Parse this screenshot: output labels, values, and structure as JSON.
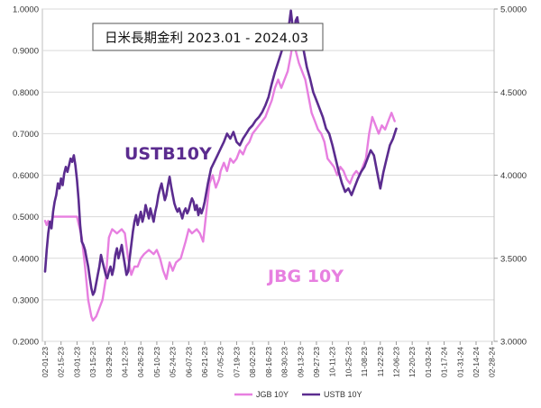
{
  "chart_data": {
    "type": "line",
    "title": "日米長期金利 2023.01 - 2024.03",
    "left_axis": {
      "ylim": [
        0.2,
        1.0
      ],
      "ticks": [
        "1.0000",
        "0.9000",
        "0.8000",
        "0.7000",
        "0.6000",
        "0.5000",
        "0.4000",
        "0.3000",
        "0.2000"
      ]
    },
    "right_axis": {
      "ylim": [
        3.0,
        5.0
      ],
      "ticks": [
        "5.0000",
        "4.5000",
        "4.0000",
        "3.5000",
        "3.0000"
      ]
    },
    "x_ticks": [
      "02-01-23",
      "02-15-23",
      "03-01-23",
      "03-15-23",
      "03-29-23",
      "04-12-23",
      "04-26-23",
      "05-10-23",
      "05-24-23",
      "06-07-23",
      "06-21-23",
      "07-05-23",
      "07-19-23",
      "08-02-23",
      "08-16-23",
      "08-30-23",
      "09-13-23",
      "09-27-23",
      "10-11-23",
      "10-25-23",
      "11-08-23",
      "11-22-23",
      "12-06-23",
      "12-20-23",
      "01-03-24",
      "01-17-24",
      "01-31-24",
      "02-14-24",
      "02-28-24"
    ],
    "grid": true,
    "legend_position": "bottom",
    "series": [
      {
        "name": "JGB 10Y",
        "axis": "left",
        "color": "#E77FE0",
        "values": [
          [
            0,
            0.49
          ],
          [
            0.1,
            0.48
          ],
          [
            0.2,
            0.49
          ],
          [
            0.3,
            0.48
          ],
          [
            0.5,
            0.5
          ],
          [
            1,
            0.5
          ],
          [
            1.5,
            0.5
          ],
          [
            2,
            0.5
          ],
          [
            2.3,
            0.45
          ],
          [
            2.5,
            0.38
          ],
          [
            2.7,
            0.3
          ],
          [
            2.9,
            0.26
          ],
          [
            3.0,
            0.25
          ],
          [
            3.2,
            0.26
          ],
          [
            3.4,
            0.28
          ],
          [
            3.6,
            0.3
          ],
          [
            3.8,
            0.35
          ],
          [
            4.0,
            0.45
          ],
          [
            4.2,
            0.47
          ],
          [
            4.5,
            0.46
          ],
          [
            4.8,
            0.47
          ],
          [
            5.0,
            0.46
          ],
          [
            5.2,
            0.4
          ],
          [
            5.4,
            0.36
          ],
          [
            5.6,
            0.38
          ],
          [
            5.8,
            0.38
          ],
          [
            6.0,
            0.4
          ],
          [
            6.2,
            0.41
          ],
          [
            6.5,
            0.42
          ],
          [
            6.8,
            0.41
          ],
          [
            7.0,
            0.42
          ],
          [
            7.2,
            0.4
          ],
          [
            7.4,
            0.37
          ],
          [
            7.6,
            0.35
          ],
          [
            7.8,
            0.39
          ],
          [
            8.0,
            0.37
          ],
          [
            8.2,
            0.39
          ],
          [
            8.5,
            0.4
          ],
          [
            8.8,
            0.44
          ],
          [
            9.0,
            0.47
          ],
          [
            9.2,
            0.46
          ],
          [
            9.5,
            0.47
          ],
          [
            9.7,
            0.46
          ],
          [
            9.9,
            0.44
          ],
          [
            10.1,
            0.51
          ],
          [
            10.3,
            0.58
          ],
          [
            10.5,
            0.6
          ],
          [
            10.7,
            0.57
          ],
          [
            10.9,
            0.59
          ],
          [
            11.0,
            0.61
          ],
          [
            11.2,
            0.63
          ],
          [
            11.4,
            0.61
          ],
          [
            11.6,
            0.64
          ],
          [
            11.8,
            0.63
          ],
          [
            12.0,
            0.64
          ],
          [
            12.2,
            0.66
          ],
          [
            12.4,
            0.65
          ],
          [
            12.6,
            0.67
          ],
          [
            12.8,
            0.68
          ],
          [
            13.0,
            0.7
          ],
          [
            13.2,
            0.71
          ],
          [
            13.4,
            0.72
          ],
          [
            13.6,
            0.73
          ],
          [
            13.8,
            0.74
          ],
          [
            14.0,
            0.76
          ],
          [
            14.2,
            0.78
          ],
          [
            14.4,
            0.81
          ],
          [
            14.6,
            0.83
          ],
          [
            14.8,
            0.81
          ],
          [
            15.0,
            0.83
          ],
          [
            15.2,
            0.85
          ],
          [
            15.4,
            0.89
          ],
          [
            15.6,
            0.94
          ],
          [
            15.7,
            0.9
          ],
          [
            15.9,
            0.87
          ],
          [
            16.1,
            0.85
          ],
          [
            16.3,
            0.83
          ],
          [
            16.5,
            0.79
          ],
          [
            16.7,
            0.75
          ],
          [
            16.9,
            0.73
          ],
          [
            17.1,
            0.71
          ],
          [
            17.3,
            0.7
          ],
          [
            17.5,
            0.68
          ],
          [
            17.7,
            0.64
          ],
          [
            17.9,
            0.63
          ],
          [
            18.1,
            0.62
          ],
          [
            18.3,
            0.6
          ],
          [
            18.5,
            0.62
          ],
          [
            18.7,
            0.61
          ],
          [
            18.9,
            0.59
          ],
          [
            19.1,
            0.58
          ],
          [
            19.3,
            0.6
          ],
          [
            19.5,
            0.61
          ],
          [
            19.7,
            0.6
          ],
          [
            19.9,
            0.62
          ],
          [
            20.1,
            0.64
          ],
          [
            20.3,
            0.7
          ],
          [
            20.5,
            0.74
          ],
          [
            20.7,
            0.72
          ],
          [
            20.9,
            0.7
          ],
          [
            21.1,
            0.72
          ],
          [
            21.3,
            0.71
          ],
          [
            21.5,
            0.73
          ],
          [
            21.7,
            0.75
          ],
          [
            21.9,
            0.73
          ]
        ]
      },
      {
        "name": "USTB 10Y",
        "axis": "right",
        "color": "#5B2C8F",
        "values": [
          [
            0,
            3.42
          ],
          [
            0.1,
            3.55
          ],
          [
            0.2,
            3.65
          ],
          [
            0.3,
            3.72
          ],
          [
            0.4,
            3.68
          ],
          [
            0.5,
            3.78
          ],
          [
            0.6,
            3.84
          ],
          [
            0.7,
            3.88
          ],
          [
            0.8,
            3.95
          ],
          [
            0.9,
            3.92
          ],
          [
            1.0,
            3.98
          ],
          [
            1.1,
            3.94
          ],
          [
            1.2,
            4.01
          ],
          [
            1.3,
            4.05
          ],
          [
            1.4,
            4.02
          ],
          [
            1.5,
            4.06
          ],
          [
            1.6,
            4.1
          ],
          [
            1.7,
            4.08
          ],
          [
            1.8,
            4.12
          ],
          [
            1.9,
            4.06
          ],
          [
            2.0,
            3.97
          ],
          [
            2.1,
            3.85
          ],
          [
            2.2,
            3.7
          ],
          [
            2.3,
            3.6
          ],
          [
            2.4,
            3.58
          ],
          [
            2.5,
            3.55
          ],
          [
            2.6,
            3.5
          ],
          [
            2.7,
            3.45
          ],
          [
            2.8,
            3.38
          ],
          [
            2.9,
            3.32
          ],
          [
            3.0,
            3.28
          ],
          [
            3.1,
            3.3
          ],
          [
            3.2,
            3.35
          ],
          [
            3.3,
            3.4
          ],
          [
            3.4,
            3.45
          ],
          [
            3.5,
            3.52
          ],
          [
            3.6,
            3.48
          ],
          [
            3.7,
            3.44
          ],
          [
            3.8,
            3.4
          ],
          [
            3.9,
            3.38
          ],
          [
            4.0,
            3.42
          ],
          [
            4.1,
            3.45
          ],
          [
            4.2,
            3.4
          ],
          [
            4.3,
            3.44
          ],
          [
            4.4,
            3.52
          ],
          [
            4.5,
            3.56
          ],
          [
            4.6,
            3.5
          ],
          [
            4.7,
            3.54
          ],
          [
            4.8,
            3.58
          ],
          [
            4.9,
            3.52
          ],
          [
            5.0,
            3.46
          ],
          [
            5.1,
            3.4
          ],
          [
            5.2,
            3.42
          ],
          [
            5.3,
            3.5
          ],
          [
            5.4,
            3.58
          ],
          [
            5.5,
            3.66
          ],
          [
            5.6,
            3.72
          ],
          [
            5.7,
            3.76
          ],
          [
            5.8,
            3.7
          ],
          [
            5.9,
            3.74
          ],
          [
            6.0,
            3.78
          ],
          [
            6.1,
            3.72
          ],
          [
            6.2,
            3.76
          ],
          [
            6.3,
            3.82
          ],
          [
            6.4,
            3.78
          ],
          [
            6.5,
            3.74
          ],
          [
            6.6,
            3.8
          ],
          [
            6.7,
            3.76
          ],
          [
            6.8,
            3.72
          ],
          [
            6.9,
            3.78
          ],
          [
            7.0,
            3.82
          ],
          [
            7.1,
            3.88
          ],
          [
            7.2,
            3.92
          ],
          [
            7.3,
            3.95
          ],
          [
            7.4,
            3.9
          ],
          [
            7.5,
            3.85
          ],
          [
            7.6,
            3.88
          ],
          [
            7.7,
            3.94
          ],
          [
            7.8,
            3.99
          ],
          [
            7.9,
            3.93
          ],
          [
            8.0,
            3.88
          ],
          [
            8.1,
            3.83
          ],
          [
            8.2,
            3.8
          ],
          [
            8.3,
            3.78
          ],
          [
            8.4,
            3.8
          ],
          [
            8.5,
            3.77
          ],
          [
            8.6,
            3.74
          ],
          [
            8.7,
            3.78
          ],
          [
            8.8,
            3.8
          ],
          [
            8.9,
            3.77
          ],
          [
            9.0,
            3.79
          ],
          [
            9.1,
            3.83
          ],
          [
            9.2,
            3.86
          ],
          [
            9.3,
            3.84
          ],
          [
            9.4,
            3.79
          ],
          [
            9.5,
            3.82
          ],
          [
            9.6,
            3.76
          ],
          [
            9.7,
            3.8
          ],
          [
            9.8,
            3.77
          ],
          [
            9.9,
            3.8
          ],
          [
            10.0,
            3.84
          ],
          [
            10.2,
            3.95
          ],
          [
            10.4,
            4.04
          ],
          [
            10.6,
            4.08
          ],
          [
            10.8,
            4.12
          ],
          [
            11.0,
            4.16
          ],
          [
            11.2,
            4.2
          ],
          [
            11.4,
            4.25
          ],
          [
            11.6,
            4.22
          ],
          [
            11.8,
            4.26
          ],
          [
            12.0,
            4.2
          ],
          [
            12.2,
            4.18
          ],
          [
            12.4,
            4.22
          ],
          [
            12.6,
            4.25
          ],
          [
            12.8,
            4.28
          ],
          [
            13.0,
            4.3
          ],
          [
            13.2,
            4.33
          ],
          [
            13.4,
            4.35
          ],
          [
            13.6,
            4.38
          ],
          [
            13.8,
            4.42
          ],
          [
            14.0,
            4.47
          ],
          [
            14.2,
            4.55
          ],
          [
            14.4,
            4.62
          ],
          [
            14.6,
            4.68
          ],
          [
            14.8,
            4.74
          ],
          [
            15.0,
            4.8
          ],
          [
            15.2,
            4.88
          ],
          [
            15.3,
            4.92
          ],
          [
            15.4,
            4.99
          ],
          [
            15.5,
            4.9
          ],
          [
            15.6,
            4.85
          ],
          [
            15.7,
            4.93
          ],
          [
            15.8,
            4.95
          ],
          [
            15.9,
            4.88
          ],
          [
            16.0,
            4.8
          ],
          [
            16.2,
            4.75
          ],
          [
            16.4,
            4.65
          ],
          [
            16.6,
            4.58
          ],
          [
            16.8,
            4.5
          ],
          [
            17.0,
            4.45
          ],
          [
            17.2,
            4.4
          ],
          [
            17.4,
            4.35
          ],
          [
            17.6,
            4.28
          ],
          [
            17.8,
            4.25
          ],
          [
            18.0,
            4.18
          ],
          [
            18.2,
            4.1
          ],
          [
            18.4,
            4.02
          ],
          [
            18.6,
            3.95
          ],
          [
            18.8,
            3.9
          ],
          [
            19.0,
            3.92
          ],
          [
            19.2,
            3.88
          ],
          [
            19.4,
            3.93
          ],
          [
            19.6,
            3.98
          ],
          [
            19.8,
            4.02
          ],
          [
            20.0,
            4.05
          ],
          [
            20.2,
            4.1
          ],
          [
            20.4,
            4.15
          ],
          [
            20.6,
            4.12
          ],
          [
            20.8,
            4.02
          ],
          [
            21.0,
            3.92
          ],
          [
            21.2,
            4.02
          ],
          [
            21.4,
            4.1
          ],
          [
            21.6,
            4.18
          ],
          [
            21.8,
            4.22
          ],
          [
            22.0,
            4.28
          ]
        ]
      }
    ],
    "annotations": [
      {
        "text": "USTB10Y",
        "color": "#5B2C8F"
      },
      {
        "text": "JBG 10Y",
        "color": "#E77FE0"
      }
    ]
  }
}
